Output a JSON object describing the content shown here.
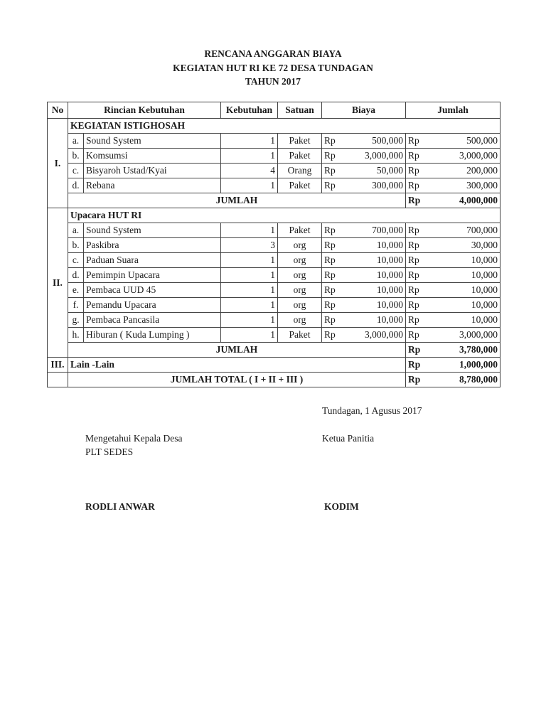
{
  "header": {
    "line1": "RENCANA ANGGARAN BIAYA",
    "line2": "KEGIATAN HUT RI KE 72 DESA TUNDAGAN",
    "line3": "TAHUN 2017"
  },
  "table": {
    "columns": [
      "No",
      "Rincian Kebutuhan",
      "Kebutuhan",
      "Satuan",
      "Biaya",
      "Jumlah"
    ],
    "currency": "Rp",
    "sections": [
      {
        "no": "I.",
        "title": "KEGIATAN ISTIGHOSAH",
        "items": [
          {
            "letter": "a.",
            "desc": "Sound System",
            "qty": "1",
            "unit": "Paket",
            "price": "500,000",
            "total": "500,000"
          },
          {
            "letter": "b.",
            "desc": "Komsumsi",
            "qty": "1",
            "unit": "Paket",
            "price": "3,000,000",
            "total": "3,000,000"
          },
          {
            "letter": "c.",
            "desc": "Bisyaroh Ustad/Kyai",
            "qty": "4",
            "unit": "Orang",
            "price": "50,000",
            "total": "200,000"
          },
          {
            "letter": "d.",
            "desc": "Rebana",
            "qty": "1",
            "unit": "Paket",
            "price": "300,000",
            "total": "300,000"
          }
        ],
        "subtotal_label": "JUMLAH",
        "subtotal": "4,000,000"
      },
      {
        "no": "II.",
        "title": "Upacara HUT RI",
        "items": [
          {
            "letter": "a.",
            "desc": "Sound System",
            "qty": "1",
            "unit": "Paket",
            "price": "700,000",
            "total": "700,000"
          },
          {
            "letter": "b.",
            "desc": "Paskibra",
            "qty": "3",
            "unit": "org",
            "price": "10,000",
            "total": "30,000"
          },
          {
            "letter": "c.",
            "desc": "Paduan Suara",
            "qty": "1",
            "unit": "org",
            "price": "10,000",
            "total": "10,000"
          },
          {
            "letter": "d.",
            "desc": "Pemimpin Upacara",
            "qty": "1",
            "unit": "org",
            "price": "10,000",
            "total": "10,000"
          },
          {
            "letter": "e.",
            "desc": "Pembaca UUD 45",
            "qty": "1",
            "unit": "org",
            "price": "10,000",
            "total": "10,000"
          },
          {
            "letter": "f.",
            "desc": "Pemandu Upacara",
            "qty": "1",
            "unit": "org",
            "price": "10,000",
            "total": "10,000"
          },
          {
            "letter": "g.",
            "desc": "Pembaca Pancasila",
            "qty": "1",
            "unit": "org",
            "price": "10,000",
            "total": "10,000"
          },
          {
            "letter": "h.",
            "desc": "Hiburan ( Kuda Lumping )",
            "qty": "1",
            "unit": "Paket",
            "price": "3,000,000",
            "total": "3,000,000"
          }
        ],
        "subtotal_label": "JUMLAH",
        "subtotal": "3,780,000"
      }
    ],
    "other": {
      "no": "III.",
      "label": "Lain -Lain",
      "total": "1,000,000"
    },
    "grand_total": {
      "label": "JUMLAH TOTAL ( I + II + III )",
      "total": "8,780,000"
    }
  },
  "signature": {
    "place_date": "Tundagan, 1 Agusus 2017",
    "left_role1": "Mengetahui Kepala Desa",
    "left_role2": "PLT SEDES",
    "right_role": "Ketua Panitia",
    "left_name": "RODLI ANWAR",
    "right_name": "KODIM"
  }
}
